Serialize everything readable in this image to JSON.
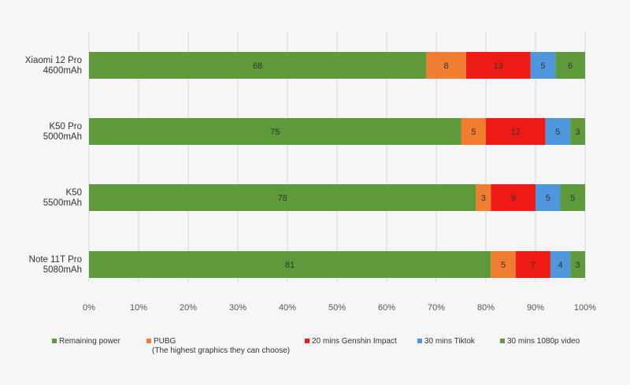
{
  "chart_data": {
    "type": "bar",
    "orientation": "horizontal",
    "stacked": true,
    "title": "",
    "categories": [
      {
        "line1": "Xiaomi 12 Pro",
        "line2": "4600mAh"
      },
      {
        "line1": "K50 Pro",
        "line2": "5000mAh"
      },
      {
        "line1": "K50",
        "line2": "5500mAh"
      },
      {
        "line1": "Note 11T Pro",
        "line2": "5080mAh"
      }
    ],
    "series": [
      {
        "name": "Remaining power",
        "name_line2": "",
        "color": "#5e9a3b",
        "values": [
          68,
          75,
          78,
          81
        ]
      },
      {
        "name": "PUBG",
        "name_line2": "(The highest graphics they can choose)",
        "color": "#f07d30",
        "values": [
          8,
          5,
          3,
          5
        ]
      },
      {
        "name": "20 mins Genshin Impact",
        "name_line2": "",
        "color": "#ee1a16",
        "values": [
          13,
          12,
          9,
          7
        ]
      },
      {
        "name": "30 mins Tiktok",
        "name_line2": "",
        "color": "#4f97dc",
        "values": [
          5,
          5,
          5,
          4
        ]
      },
      {
        "name": "30 mins 1080p video",
        "name_line2": "",
        "color": "#5e9a3b",
        "values": [
          6,
          3,
          5,
          3
        ]
      }
    ],
    "xlim": [
      0,
      100
    ],
    "x_ticks": [
      "0%",
      "10%",
      "20%",
      "30%",
      "40%",
      "50%",
      "60%",
      "70%",
      "80%",
      "90%",
      "100%"
    ],
    "grid": true,
    "legend_position": "bottom"
  }
}
